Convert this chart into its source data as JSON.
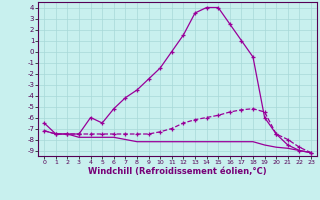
{
  "xlabel": "Windchill (Refroidissement éolien,°C)",
  "bg_color": "#c8f0ee",
  "grid_color": "#a8d8d8",
  "line_color": "#990099",
  "ylim": [
    -9.5,
    4.5
  ],
  "xlim": [
    -0.5,
    23.5
  ],
  "yticks": [
    4,
    3,
    2,
    1,
    0,
    -1,
    -2,
    -3,
    -4,
    -5,
    -6,
    -7,
    -8,
    -9
  ],
  "xticks": [
    0,
    1,
    2,
    3,
    4,
    5,
    6,
    7,
    8,
    9,
    10,
    11,
    12,
    13,
    14,
    15,
    16,
    17,
    18,
    19,
    20,
    21,
    22,
    23
  ],
  "line1_x": [
    0,
    1,
    2,
    3,
    4,
    5,
    6,
    7,
    8,
    9,
    10,
    11,
    12,
    13,
    14,
    15,
    16,
    17,
    18,
    19,
    20,
    21,
    22,
    23
  ],
  "line1_y": [
    -6.5,
    -7.5,
    -7.5,
    -7.5,
    -6.0,
    -6.5,
    -5.2,
    -4.2,
    -3.5,
    -2.5,
    -1.5,
    0.0,
    1.5,
    3.5,
    4.0,
    4.0,
    2.5,
    1.0,
    -0.5,
    -6.0,
    -7.5,
    -8.5,
    -9.0,
    -9.2
  ],
  "line2_x": [
    0,
    1,
    2,
    3,
    4,
    5,
    6,
    7,
    8,
    9,
    10,
    11,
    12,
    13,
    14,
    15,
    16,
    17,
    18,
    19,
    20,
    21,
    22,
    23
  ],
  "line2_y": [
    -7.2,
    -7.5,
    -7.5,
    -7.5,
    -7.5,
    -7.5,
    -7.5,
    -7.5,
    -7.5,
    -7.5,
    -7.3,
    -7.0,
    -6.5,
    -6.2,
    -6.0,
    -5.8,
    -5.5,
    -5.3,
    -5.2,
    -5.5,
    -7.5,
    -8.0,
    -8.7,
    -9.2
  ],
  "line3_x": [
    0,
    1,
    2,
    3,
    4,
    5,
    6,
    7,
    8,
    9,
    10,
    11,
    12,
    13,
    14,
    15,
    16,
    17,
    18,
    19,
    20,
    21,
    22,
    23
  ],
  "line3_y": [
    -7.2,
    -7.5,
    -7.5,
    -7.8,
    -7.8,
    -7.8,
    -7.8,
    -8.0,
    -8.2,
    -8.2,
    -8.2,
    -8.2,
    -8.2,
    -8.2,
    -8.2,
    -8.2,
    -8.2,
    -8.2,
    -8.2,
    -8.5,
    -8.7,
    -8.8,
    -9.0,
    -9.2
  ]
}
